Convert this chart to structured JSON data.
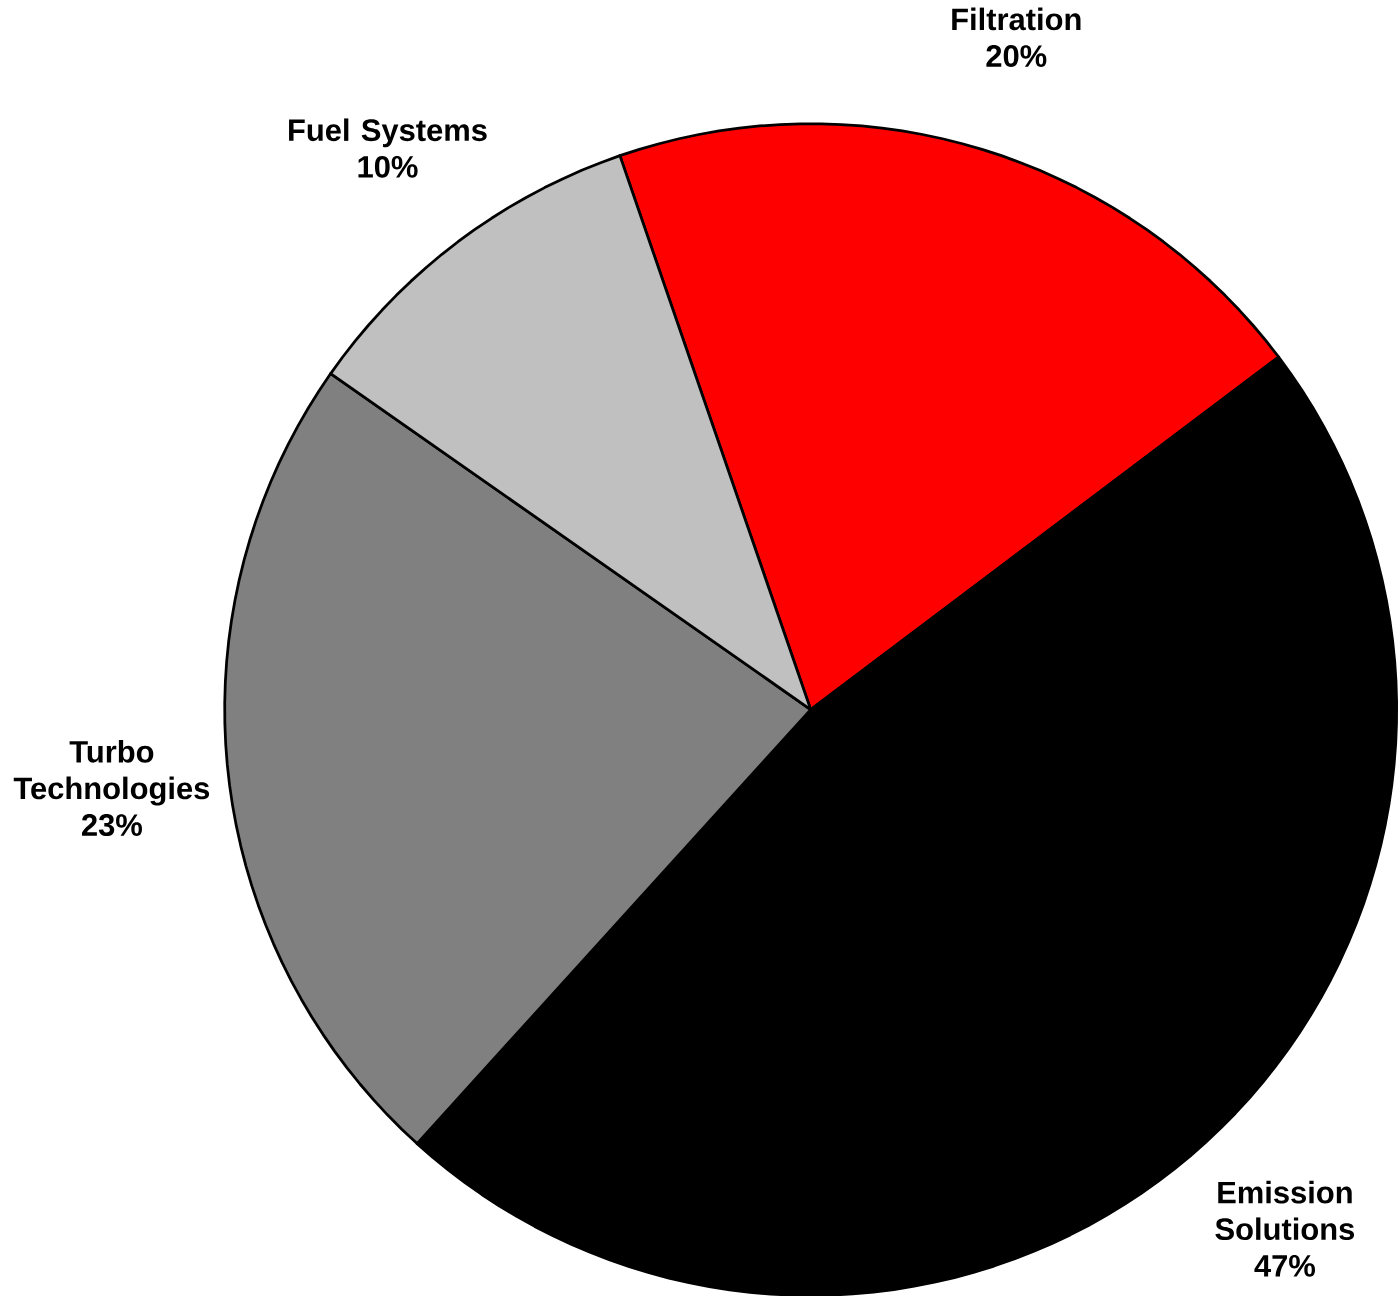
{
  "chart_data": {
    "type": "pie",
    "categories": [
      "Filtration",
      "Emission Solutions",
      "Turbo Technologies",
      "Fuel Systems"
    ],
    "values": [
      20,
      47,
      23,
      10
    ],
    "value_labels": [
      "20%",
      "47%",
      "23%",
      "10%"
    ],
    "colors": [
      "#ff0000",
      "#000000",
      "#808080",
      "#c0c0c0"
    ]
  }
}
